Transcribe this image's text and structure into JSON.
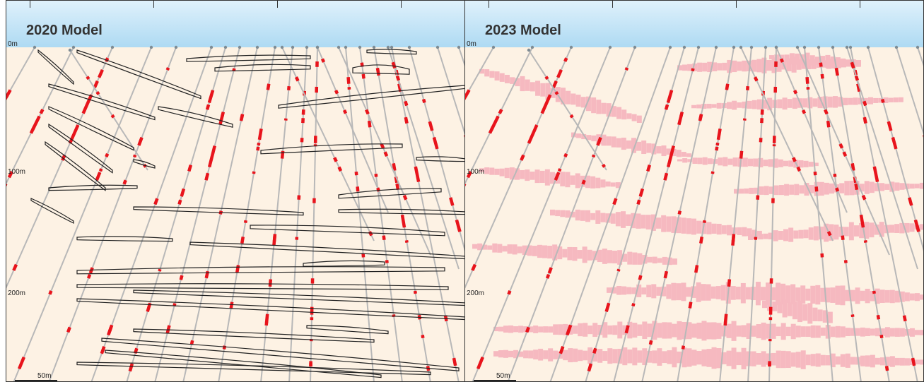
{
  "figure": {
    "panels": [
      {
        "title": "2020 Model",
        "depth_labels": [
          "0m",
          "100m",
          "200m"
        ],
        "scale_label": "50m"
      },
      {
        "title": "2023 Model",
        "depth_labels": [
          "0m",
          "100m",
          "200m"
        ],
        "scale_label": "50m"
      }
    ]
  },
  "colors": {
    "sky_top": "#dff1fb",
    "sky_bottom": "#aedaf3",
    "ground": "#fdf2e4",
    "drillhole": "#b8b8b8",
    "collar": "#7f8c94",
    "intercept": "#e8141c",
    "lens_outline": "#222222",
    "block_model": "#f6b9c0"
  }
}
